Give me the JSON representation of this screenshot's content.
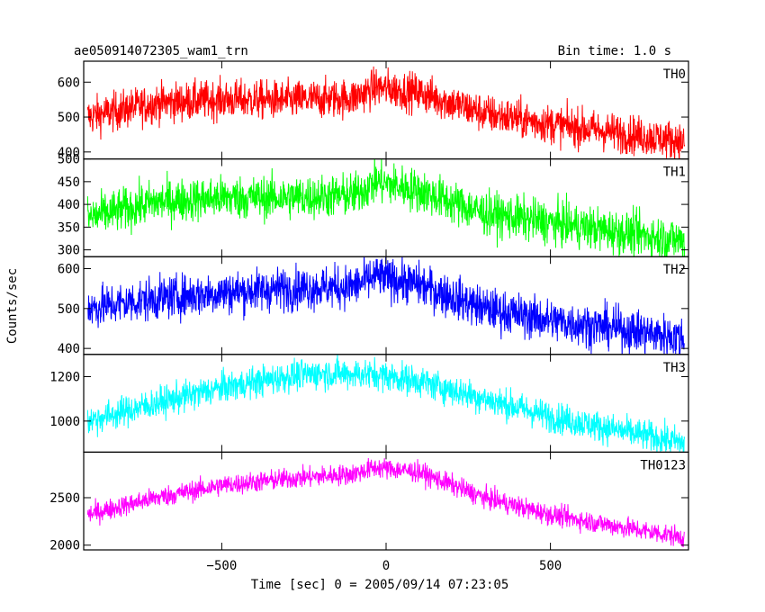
{
  "title": "ae050914072305_wam1_trn",
  "bin_time": "Bin time: 1.0 s",
  "ylabel": "Counts/sec",
  "xlabel": "Time [sec] 0 = 2005/09/14 07:23:05",
  "chart_data": {
    "type": "line",
    "xlim": [
      -920,
      920
    ],
    "x_ticks": [
      -500,
      0,
      500
    ],
    "x_tick_labels": [
      "−500",
      "0",
      "500"
    ],
    "grid": false,
    "legend": "none",
    "panels": [
      {
        "name": "TH0",
        "color": "#ff0000",
        "ylim": [
          380,
          660
        ],
        "y_ticks": [
          400,
          500,
          600
        ],
        "noise": 28,
        "envelope": [
          [
            -910,
            500
          ],
          [
            -700,
            540
          ],
          [
            -500,
            550
          ],
          [
            -300,
            548
          ],
          [
            -100,
            555
          ],
          [
            -30,
            585
          ],
          [
            100,
            570
          ],
          [
            300,
            510
          ],
          [
            500,
            480
          ],
          [
            700,
            455
          ],
          [
            910,
            430
          ]
        ]
      },
      {
        "name": "TH1",
        "color": "#00ff00",
        "ylim": [
          285,
          500
        ],
        "y_ticks": [
          300,
          350,
          400,
          450,
          500
        ],
        "noise": 24,
        "envelope": [
          [
            -910,
            370
          ],
          [
            -700,
            405
          ],
          [
            -500,
            415
          ],
          [
            -300,
            415
          ],
          [
            -100,
            420
          ],
          [
            -30,
            450
          ],
          [
            100,
            430
          ],
          [
            300,
            380
          ],
          [
            500,
            360
          ],
          [
            700,
            340
          ],
          [
            910,
            320
          ]
        ]
      },
      {
        "name": "TH2",
        "color": "#0000ff",
        "ylim": [
          385,
          630
        ],
        "y_ticks": [
          400,
          500,
          600
        ],
        "noise": 27,
        "envelope": [
          [
            -910,
            500
          ],
          [
            -700,
            525
          ],
          [
            -500,
            540
          ],
          [
            -300,
            550
          ],
          [
            -100,
            555
          ],
          [
            -30,
            580
          ],
          [
            100,
            560
          ],
          [
            300,
            500
          ],
          [
            500,
            470
          ],
          [
            700,
            450
          ],
          [
            910,
            425
          ]
        ]
      },
      {
        "name": "TH3",
        "color": "#00ffff",
        "ylim": [
          860,
          1300
        ],
        "y_ticks": [
          1000,
          1200
        ],
        "noise": 35,
        "envelope": [
          [
            -910,
            1000
          ],
          [
            -700,
            1080
          ],
          [
            -500,
            1150
          ],
          [
            -300,
            1200
          ],
          [
            -200,
            1215
          ],
          [
            -30,
            1210
          ],
          [
            100,
            1180
          ],
          [
            300,
            1100
          ],
          [
            500,
            1020
          ],
          [
            700,
            960
          ],
          [
            910,
            900
          ]
        ]
      },
      {
        "name": "TH0123",
        "color": "#ff00ff",
        "ylim": [
          1950,
          2980
        ],
        "y_ticks": [
          2000,
          2500
        ],
        "noise": 55,
        "envelope": [
          [
            -910,
            2320
          ],
          [
            -700,
            2500
          ],
          [
            -500,
            2630
          ],
          [
            -300,
            2700
          ],
          [
            -100,
            2750
          ],
          [
            -30,
            2820
          ],
          [
            100,
            2770
          ],
          [
            300,
            2500
          ],
          [
            500,
            2320
          ],
          [
            700,
            2200
          ],
          [
            910,
            2080
          ]
        ]
      }
    ]
  }
}
